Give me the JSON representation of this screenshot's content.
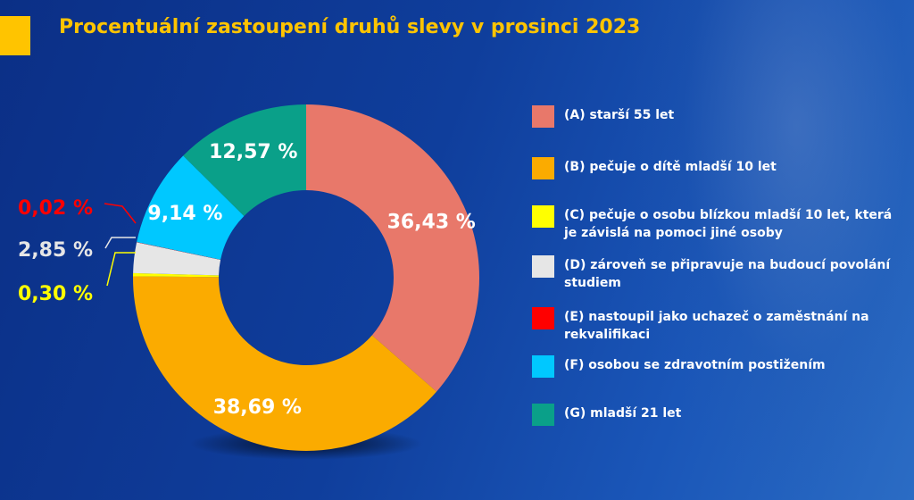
{
  "title": "Procentuální zastoupení druhů slevy v prosinci 2023",
  "colors": {
    "accent": "#ffc400",
    "background": "#0f3e9c",
    "A": "#e8786a",
    "B": "#fbab00",
    "C": "#ffff00",
    "D": "#e6e6e6",
    "E": "#ff0000",
    "F": "#00c8ff",
    "G": "#0aa089"
  },
  "chart_data": {
    "type": "pie",
    "title": "Procentuální zastoupení druhů slevy v prosinci 2023",
    "donut": true,
    "legend_position": "right",
    "categories": [
      "(A) starší 55 let",
      "(B) pečuje o dítě mladší 10 let",
      "(C) pečuje o osobu blízkou mladší 10 let, která je závislá na pomoci jiné osoby",
      "(D) zároveň se připravuje na budoucí povolání studiem",
      "(E) nastoupil jako uchazeč o zaměstnání na rekvalifikaci",
      "(F) osobou se zdravotním postižením",
      "(G) mladší 21 let"
    ],
    "values": [
      36.43,
      38.69,
      0.3,
      2.85,
      0.02,
      9.14,
      12.57
    ],
    "labels": [
      "36,43 %",
      "38,69 %",
      "0,30 %",
      "2,85 %",
      "0,02 %",
      "9,14 %",
      "12,57 %"
    ],
    "colors": [
      "#e8786a",
      "#fbab00",
      "#ffff00",
      "#e6e6e6",
      "#ff0000",
      "#00c8ff",
      "#0aa089"
    ]
  }
}
